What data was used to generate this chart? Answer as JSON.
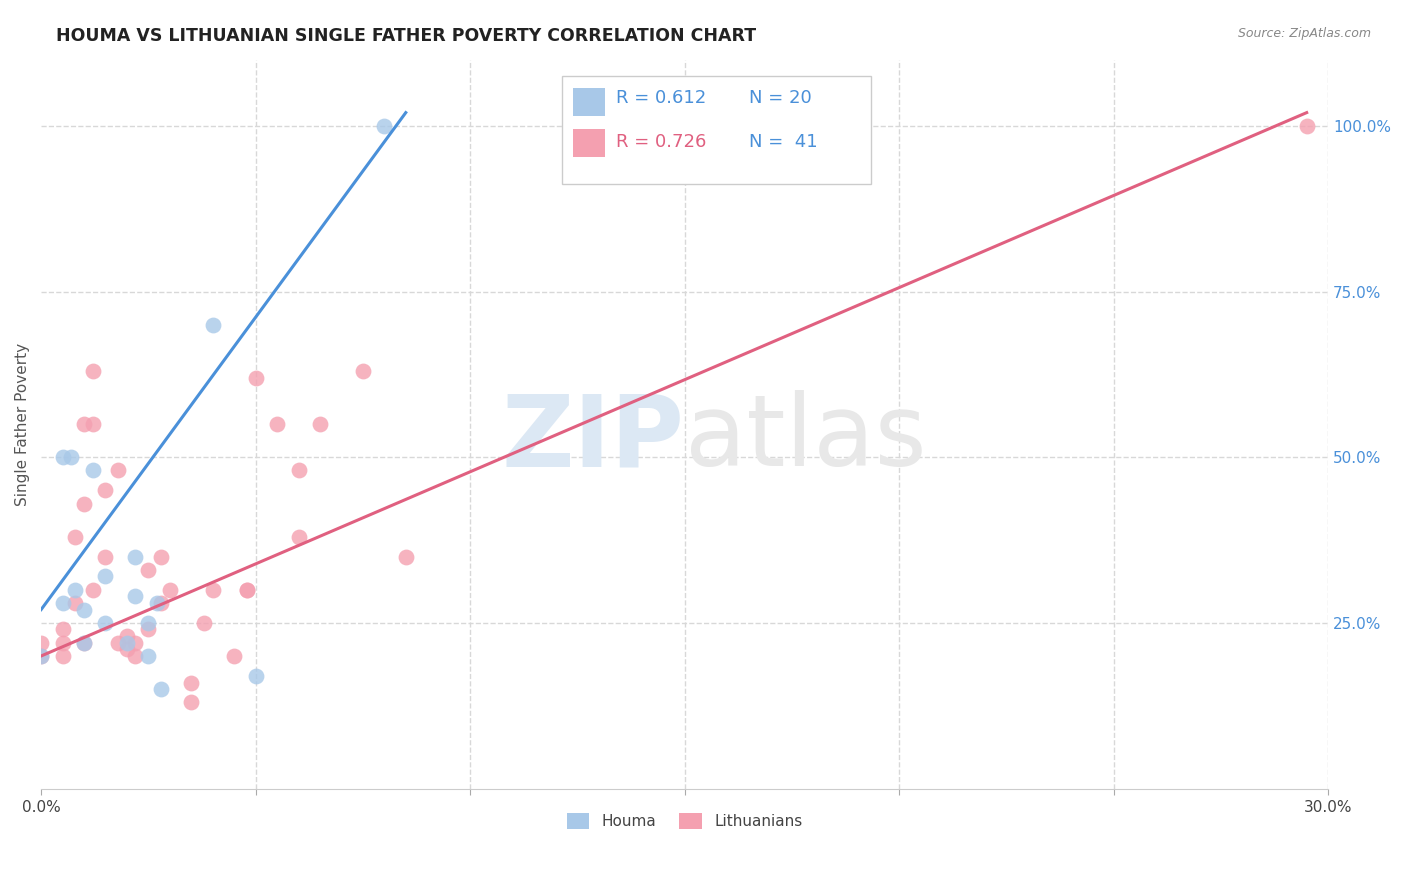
{
  "title": "HOUMA VS LITHUANIAN SINGLE FATHER POVERTY CORRELATION CHART",
  "source": "Source: ZipAtlas.com",
  "ylabel": "Single Father Poverty",
  "ylabel_right_ticks": [
    "100.0%",
    "75.0%",
    "50.0%",
    "25.0%"
  ],
  "ylabel_right_values": [
    1.0,
    0.75,
    0.5,
    0.25
  ],
  "houma_R": 0.612,
  "houma_N": 20,
  "lith_R": 0.726,
  "lith_N": 41,
  "houma_color": "#a8c8e8",
  "lith_color": "#f4a0b0",
  "houma_line_color": "#4a90d9",
  "lith_line_color": "#e06080",
  "watermark_zip": "ZIP",
  "watermark_atlas": "atlas",
  "houma_x": [
    0.0,
    0.005,
    0.005,
    0.007,
    0.008,
    0.01,
    0.01,
    0.012,
    0.015,
    0.015,
    0.02,
    0.022,
    0.022,
    0.025,
    0.025,
    0.027,
    0.028,
    0.04,
    0.05,
    0.08
  ],
  "houma_y": [
    0.2,
    0.5,
    0.28,
    0.5,
    0.3,
    0.27,
    0.22,
    0.48,
    0.32,
    0.25,
    0.22,
    0.29,
    0.35,
    0.2,
    0.25,
    0.28,
    0.15,
    0.7,
    0.17,
    1.0
  ],
  "lith_x": [
    0.0,
    0.0,
    0.005,
    0.005,
    0.005,
    0.008,
    0.008,
    0.01,
    0.01,
    0.01,
    0.012,
    0.012,
    0.012,
    0.015,
    0.015,
    0.018,
    0.018,
    0.02,
    0.02,
    0.022,
    0.022,
    0.025,
    0.025,
    0.028,
    0.028,
    0.03,
    0.035,
    0.035,
    0.038,
    0.04,
    0.045,
    0.048,
    0.048,
    0.05,
    0.055,
    0.06,
    0.06,
    0.065,
    0.075,
    0.085,
    0.295
  ],
  "lith_y": [
    0.2,
    0.22,
    0.2,
    0.22,
    0.24,
    0.28,
    0.38,
    0.22,
    0.43,
    0.55,
    0.55,
    0.63,
    0.3,
    0.35,
    0.45,
    0.22,
    0.48,
    0.21,
    0.23,
    0.2,
    0.22,
    0.24,
    0.33,
    0.28,
    0.35,
    0.3,
    0.16,
    0.13,
    0.25,
    0.3,
    0.2,
    0.3,
    0.3,
    0.62,
    0.55,
    0.38,
    0.48,
    0.55,
    0.63,
    0.35,
    1.0
  ],
  "houma_line_x0": 0.0,
  "houma_line_y0": 0.27,
  "houma_line_x1": 0.085,
  "houma_line_y1": 1.02,
  "lith_line_x0": 0.0,
  "lith_line_y0": 0.2,
  "lith_line_x1": 0.295,
  "lith_line_y1": 1.02,
  "xmin": 0.0,
  "xmax": 0.3,
  "ymin": 0.0,
  "ymax": 1.1,
  "grid_color": "#d8d8d8",
  "background_color": "#ffffff"
}
